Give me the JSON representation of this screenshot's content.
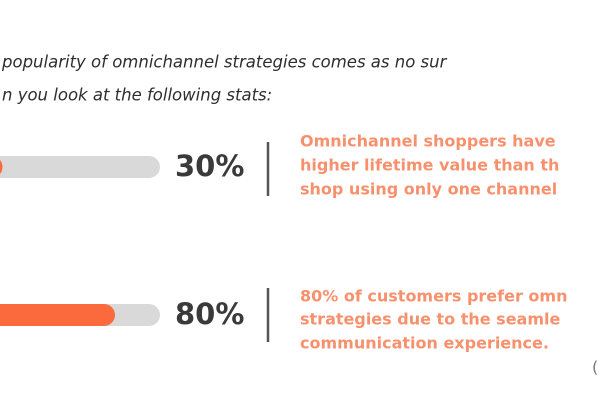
{
  "chart_data": {
    "type": "bar",
    "intro": [
      "popularity of omnichannel strategies comes as no sur",
      "n you look at the following stats:"
    ],
    "values": [
      30,
      80
    ],
    "value_labels": [
      "30%",
      "80%"
    ],
    "xlim": [
      0,
      100
    ],
    "color": "#fa6a3c",
    "descriptions": [
      [
        "Omnichannel shoppers have",
        "higher lifetime value than th",
        "shop using only one channel"
      ],
      [
        "80% of customers prefer omn",
        "strategies due to the seamle",
        "communication experience."
      ]
    ],
    "note": "("
  }
}
